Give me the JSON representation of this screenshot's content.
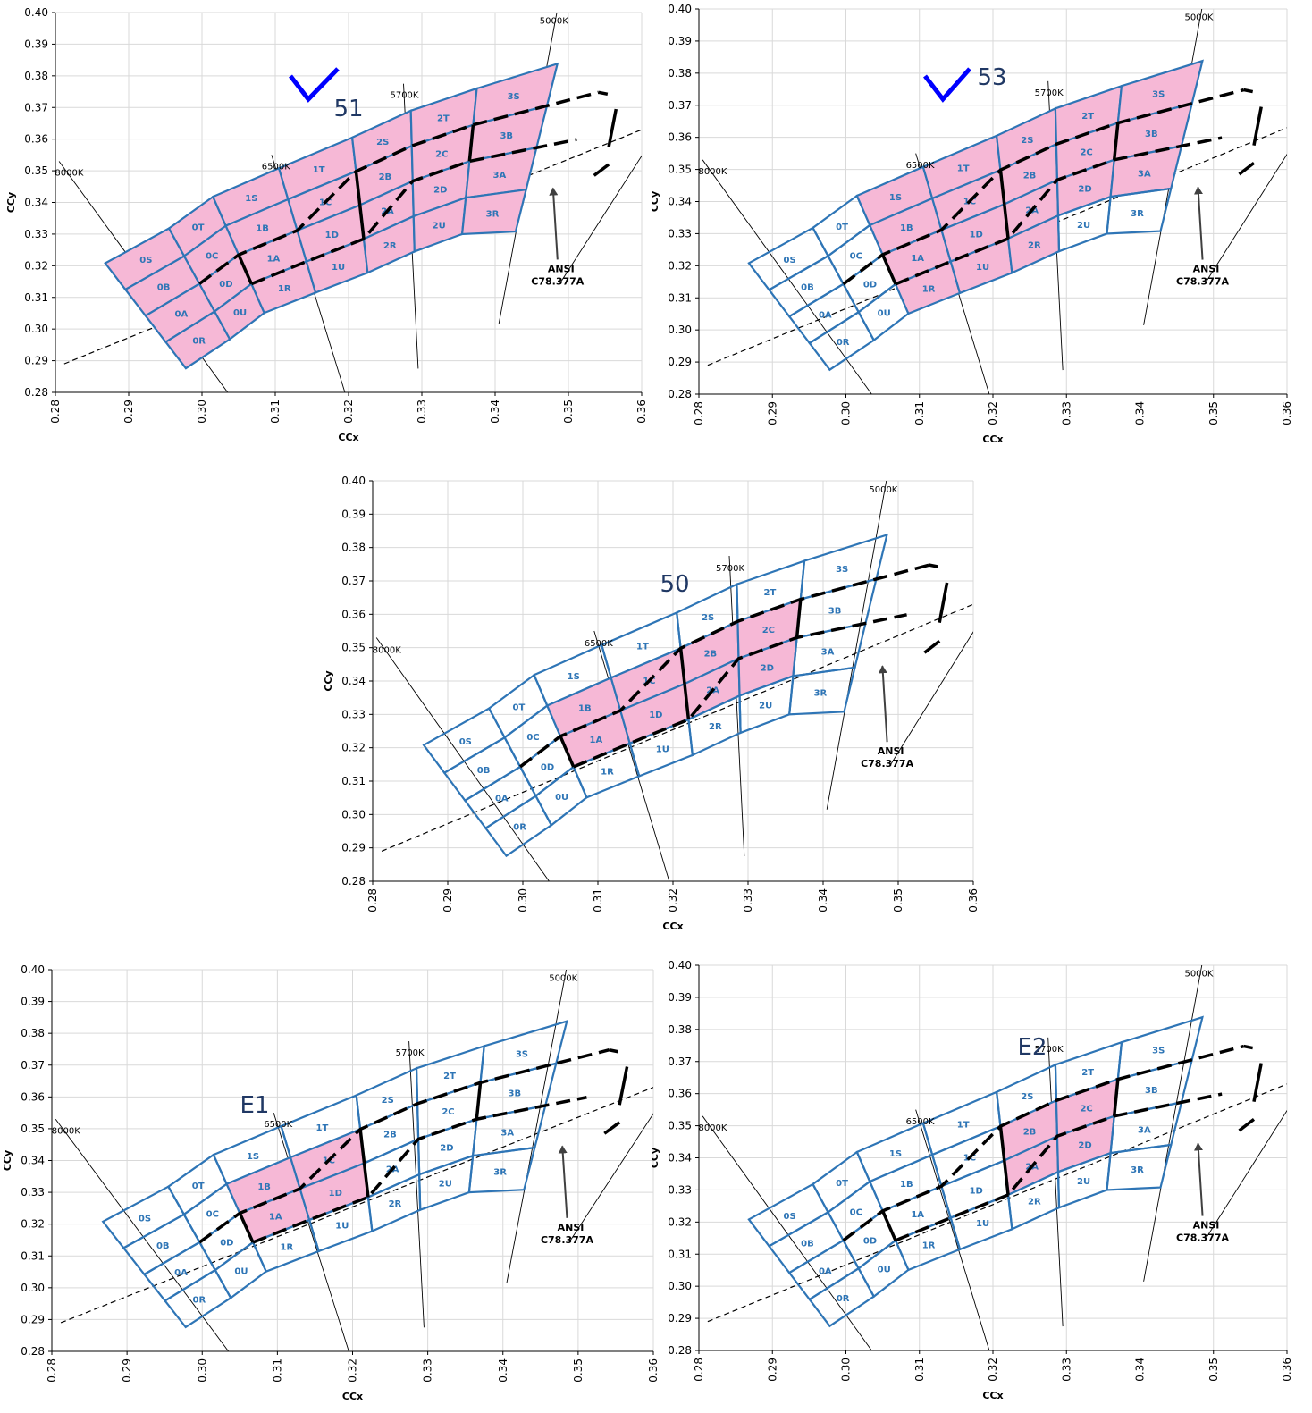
{
  "chart_data": [
    {
      "type": "scatter",
      "panel": "top-left",
      "label": "51",
      "checkmark": true,
      "xlabel": "CCx",
      "ylabel": "CCy",
      "xlim": [
        0.28,
        0.36
      ],
      "ylim": [
        0.28,
        0.4
      ],
      "filled_bins": [
        "0S",
        "0T",
        "0B",
        "0C",
        "0A",
        "0D",
        "0R",
        "0U",
        "1S",
        "1T",
        "1B",
        "1C",
        "1A",
        "1D",
        "1R",
        "1U",
        "2S",
        "2T",
        "2B",
        "2C",
        "2A",
        "2D",
        "2R",
        "2U",
        "3S",
        "3B",
        "3A",
        "3R"
      ]
    },
    {
      "type": "scatter",
      "panel": "top-right",
      "label": "53",
      "checkmark": true,
      "xlabel": "CCx",
      "ylabel": "CCy",
      "xlim": [
        0.28,
        0.36
      ],
      "ylim": [
        0.28,
        0.4
      ],
      "filled_bins": [
        "1S",
        "1T",
        "1B",
        "1C",
        "1A",
        "1D",
        "1R",
        "1U",
        "2S",
        "2T",
        "2B",
        "2C",
        "2A",
        "2D",
        "2R",
        "3S",
        "3B",
        "3A"
      ]
    },
    {
      "type": "scatter",
      "panel": "middle",
      "label": "50",
      "checkmark": false,
      "xlabel": "CCx",
      "ylabel": "CCy",
      "xlim": [
        0.28,
        0.36
      ],
      "ylim": [
        0.28,
        0.4
      ],
      "filled_bins": [
        "1B",
        "1C",
        "1A",
        "1D",
        "2B",
        "2C",
        "2A",
        "2D"
      ]
    },
    {
      "type": "scatter",
      "panel": "bottom-left",
      "label": "E1",
      "checkmark": false,
      "xlabel": "CCx",
      "ylabel": "CCy",
      "xlim": [
        0.28,
        0.36
      ],
      "ylim": [
        0.28,
        0.4
      ],
      "filled_bins": [
        "1B",
        "1C",
        "1A",
        "1D"
      ]
    },
    {
      "type": "scatter",
      "panel": "bottom-right",
      "label": "E2",
      "checkmark": false,
      "xlabel": "CCx",
      "ylabel": "CCy",
      "xlim": [
        0.28,
        0.36
      ],
      "ylim": [
        0.28,
        0.4
      ],
      "filled_bins": [
        "2B",
        "2C",
        "2A",
        "2D"
      ]
    }
  ],
  "shared": {
    "xticks": [
      "0.28",
      "0.29",
      "0.30",
      "0.31",
      "0.32",
      "0.33",
      "0.34",
      "0.35",
      "0.36"
    ],
    "yticks": [
      "0.28",
      "0.29",
      "0.30",
      "0.31",
      "0.32",
      "0.33",
      "0.34",
      "0.35",
      "0.36",
      "0.37",
      "0.38",
      "0.39",
      "0.40"
    ],
    "cct_lines": [
      {
        "label": "8000K",
        "from": [
          0.2805,
          0.353
        ],
        "to": [
          0.3035,
          0.28
        ]
      },
      {
        "label": "6500K",
        "from": [
          0.3095,
          0.355
        ],
        "to": [
          0.3195,
          0.28
        ]
      },
      {
        "label": "5700K",
        "from": [
          0.3275,
          0.3775
        ],
        "to": [
          0.3295,
          0.2875
        ]
      },
      {
        "label": "5000K",
        "from": [
          0.3485,
          0.401
        ],
        "to": [
          0.3405,
          0.3015
        ]
      }
    ],
    "planckian": {
      "from": [
        0.2812,
        0.289
      ],
      "to": [
        0.36,
        0.363
      ]
    },
    "ansi_label_1": "ANSI",
    "ansi_label_2": "C78.377A",
    "bin_grid": {
      "columns": [
        {
          "top": [
            0.2868,
            0.3208
          ],
          "bot": [
            0.2978,
            0.2876
          ]
        },
        {
          "top": [
            0.2955,
            0.3318
          ],
          "bot": [
            0.3038,
            0.2968
          ]
        },
        {
          "top": [
            0.3015,
            0.3418
          ],
          "bot": [
            0.3085,
            0.3051
          ]
        },
        {
          "top": [
            0.3105,
            0.3508
          ],
          "bot": [
            0.3155,
            0.3115
          ]
        },
        {
          "top": [
            0.3205,
            0.3605
          ],
          "bot": [
            0.3226,
            0.3178
          ]
        },
        {
          "top": [
            0.3285,
            0.369
          ],
          "bot": [
            0.329,
            0.3245
          ]
        },
        {
          "top": [
            0.3375,
            0.376
          ],
          "bot": [
            0.3355,
            0.33
          ]
        },
        {
          "top": [
            0.3485,
            0.3838
          ],
          "bot": [
            0.3428,
            0.3308
          ]
        }
      ],
      "row_fractions": [
        0,
        0.25,
        0.5,
        0.75,
        1
      ],
      "bins": [
        [
          "0S",
          "0B",
          "0A",
          "0R"
        ],
        [
          "0T",
          "0C",
          "0D",
          "0U"
        ],
        [
          "1S",
          "1B",
          "1A",
          "1R"
        ],
        [
          "1T",
          "1C",
          "1D",
          "1U"
        ],
        [
          "2S",
          "2B",
          "2A",
          "2R"
        ],
        [
          "2T",
          "2C",
          "2D",
          "2U"
        ],
        [
          "3S",
          "3B",
          "3A",
          "3R"
        ]
      ]
    },
    "colors": {
      "bin_border": "#2e75b6",
      "bin_fill": "#f6b8d6",
      "bin_label": "#2e75b6",
      "grid": "#d9d9d9",
      "check": "#0000ff",
      "label_text": "#203864"
    }
  }
}
